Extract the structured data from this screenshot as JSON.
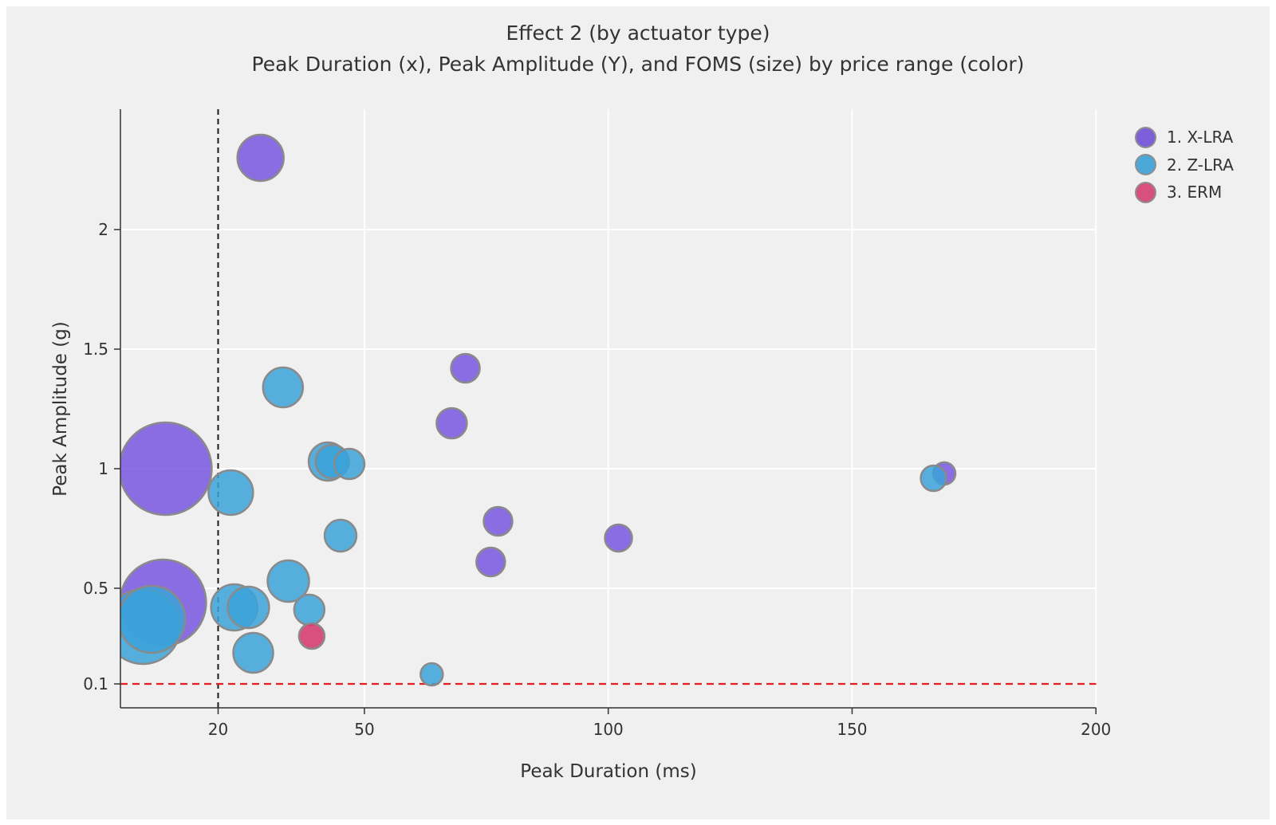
{
  "chart_data": {
    "type": "scatter",
    "variant": "bubble",
    "title": "Effect 2 (by actuator type)",
    "subtitle": "Peak Duration (x), Peak Amplitude (Y), and FOMS (size) by price range (color)",
    "xlabel": "Peak Duration (ms)",
    "ylabel": "Peak Amplitude (g)",
    "x_ticks": [
      20,
      50,
      100,
      150,
      200
    ],
    "y_ticks": [
      2,
      1.5,
      1,
      0.5,
      0.1
    ],
    "xlim": [
      0,
      200
    ],
    "ylim": [
      -0.5,
      2.55
    ],
    "grid": true,
    "grid_color": "#ffffff",
    "background_color": "#f0f0f0",
    "legend_position": "top-right",
    "size_encoding": "FOMS",
    "color_encoding": "price range",
    "reference_lines": [
      {
        "axis": "x",
        "value": 20,
        "style": "dashed",
        "color": "#1a1a1a"
      },
      {
        "axis": "y",
        "value": 0.1,
        "style": "dashed",
        "color": "#e31f1f"
      }
    ],
    "series": [
      {
        "name": "1. X-LRA",
        "color": "#7c5fd9",
        "fill": "rgba(120,85,225,0.85)",
        "points": [
          {
            "x": 28.7,
            "y": 2.3,
            "r": 29
          },
          {
            "x": 9.2,
            "y": 1.0,
            "r": 58
          },
          {
            "x": 8.7,
            "y": 0.44,
            "r": 54
          },
          {
            "x": 70.7,
            "y": 1.42,
            "r": 18
          },
          {
            "x": 67.9,
            "y": 1.19,
            "r": 19
          },
          {
            "x": 77.4,
            "y": 0.78,
            "r": 18
          },
          {
            "x": 75.9,
            "y": 0.61,
            "r": 18
          },
          {
            "x": 102.1,
            "y": 0.71,
            "r": 17
          },
          {
            "x": 168.9,
            "y": 0.98,
            "r": 14
          }
        ]
      },
      {
        "name": "2. Z-LRA",
        "color": "#4ba8d8",
        "fill": "rgba(59,162,217,0.85)",
        "points": [
          {
            "x": 4.6,
            "y": 0.34,
            "r": 47
          },
          {
            "x": 6.4,
            "y": 0.37,
            "r": 42
          },
          {
            "x": 33.3,
            "y": 1.34,
            "r": 25
          },
          {
            "x": 22.6,
            "y": 0.9,
            "r": 28
          },
          {
            "x": 42.5,
            "y": 1.03,
            "r": 24
          },
          {
            "x": 43.4,
            "y": 1.03,
            "r": 21
          },
          {
            "x": 46.9,
            "y": 1.02,
            "r": 19
          },
          {
            "x": 45.1,
            "y": 0.72,
            "r": 20
          },
          {
            "x": 34.4,
            "y": 0.53,
            "r": 26
          },
          {
            "x": 23.3,
            "y": 0.42,
            "r": 29
          },
          {
            "x": 26.2,
            "y": 0.42,
            "r": 26
          },
          {
            "x": 38.7,
            "y": 0.41,
            "r": 19
          },
          {
            "x": 27.2,
            "y": 0.23,
            "r": 25
          },
          {
            "x": 63.8,
            "y": 0.14,
            "r": 14
          },
          {
            "x": 166.7,
            "y": 0.96,
            "r": 16
          }
        ]
      },
      {
        "name": "3. ERM",
        "color": "#d8507e",
        "fill": "rgba(213,52,106,0.85)",
        "points": [
          {
            "x": 39.2,
            "y": 0.3,
            "r": 16
          }
        ]
      }
    ],
    "marker_stroke_color": "#8a8a8a",
    "axis_color": "#333333",
    "text_color": "#333333"
  }
}
